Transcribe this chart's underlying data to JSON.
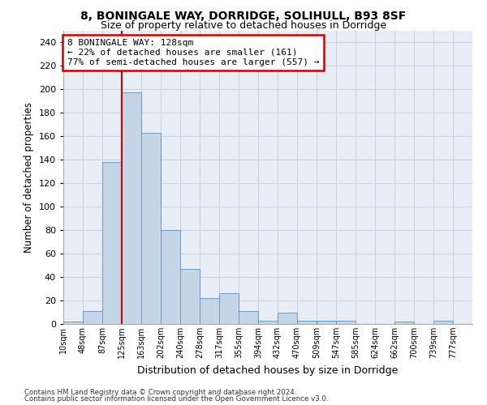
{
  "title1": "8, BONINGALE WAY, DORRIDGE, SOLIHULL, B93 8SF",
  "title2": "Size of property relative to detached houses in Dorridge",
  "xlabel": "Distribution of detached houses by size in Dorridge",
  "ylabel": "Number of detached properties",
  "bin_labels": [
    "10sqm",
    "48sqm",
    "87sqm",
    "125sqm",
    "163sqm",
    "202sqm",
    "240sqm",
    "278sqm",
    "317sqm",
    "355sqm",
    "394sqm",
    "432sqm",
    "470sqm",
    "509sqm",
    "547sqm",
    "585sqm",
    "624sqm",
    "662sqm",
    "700sqm",
    "739sqm",
    "777sqm"
  ],
  "bar_heights": [
    2,
    11,
    138,
    197,
    163,
    80,
    47,
    22,
    26,
    11,
    3,
    10,
    3,
    3,
    3,
    0,
    0,
    2,
    0,
    3,
    0
  ],
  "bar_color": "#c5d5e8",
  "bar_edge_color": "#7098c0",
  "red_line_bin": 3,
  "red_line_color": "#cc0000",
  "annotation_line1": "8 BONINGALE WAY: 128sqm",
  "annotation_line2": "← 22% of detached houses are smaller (161)",
  "annotation_line3": "77% of semi-detached houses are larger (557) →",
  "annotation_box_color": "#cc0000",
  "background_color": "#ffffff",
  "plot_bg_color": "#e8eef5",
  "grid_color": "#c8d4e4",
  "footer1": "Contains HM Land Registry data © Crown copyright and database right 2024.",
  "footer2": "Contains public sector information licensed under the Open Government Licence v3.0.",
  "ylim": [
    0,
    250
  ],
  "yticks": [
    0,
    20,
    40,
    60,
    80,
    100,
    120,
    140,
    160,
    180,
    200,
    220,
    240
  ]
}
